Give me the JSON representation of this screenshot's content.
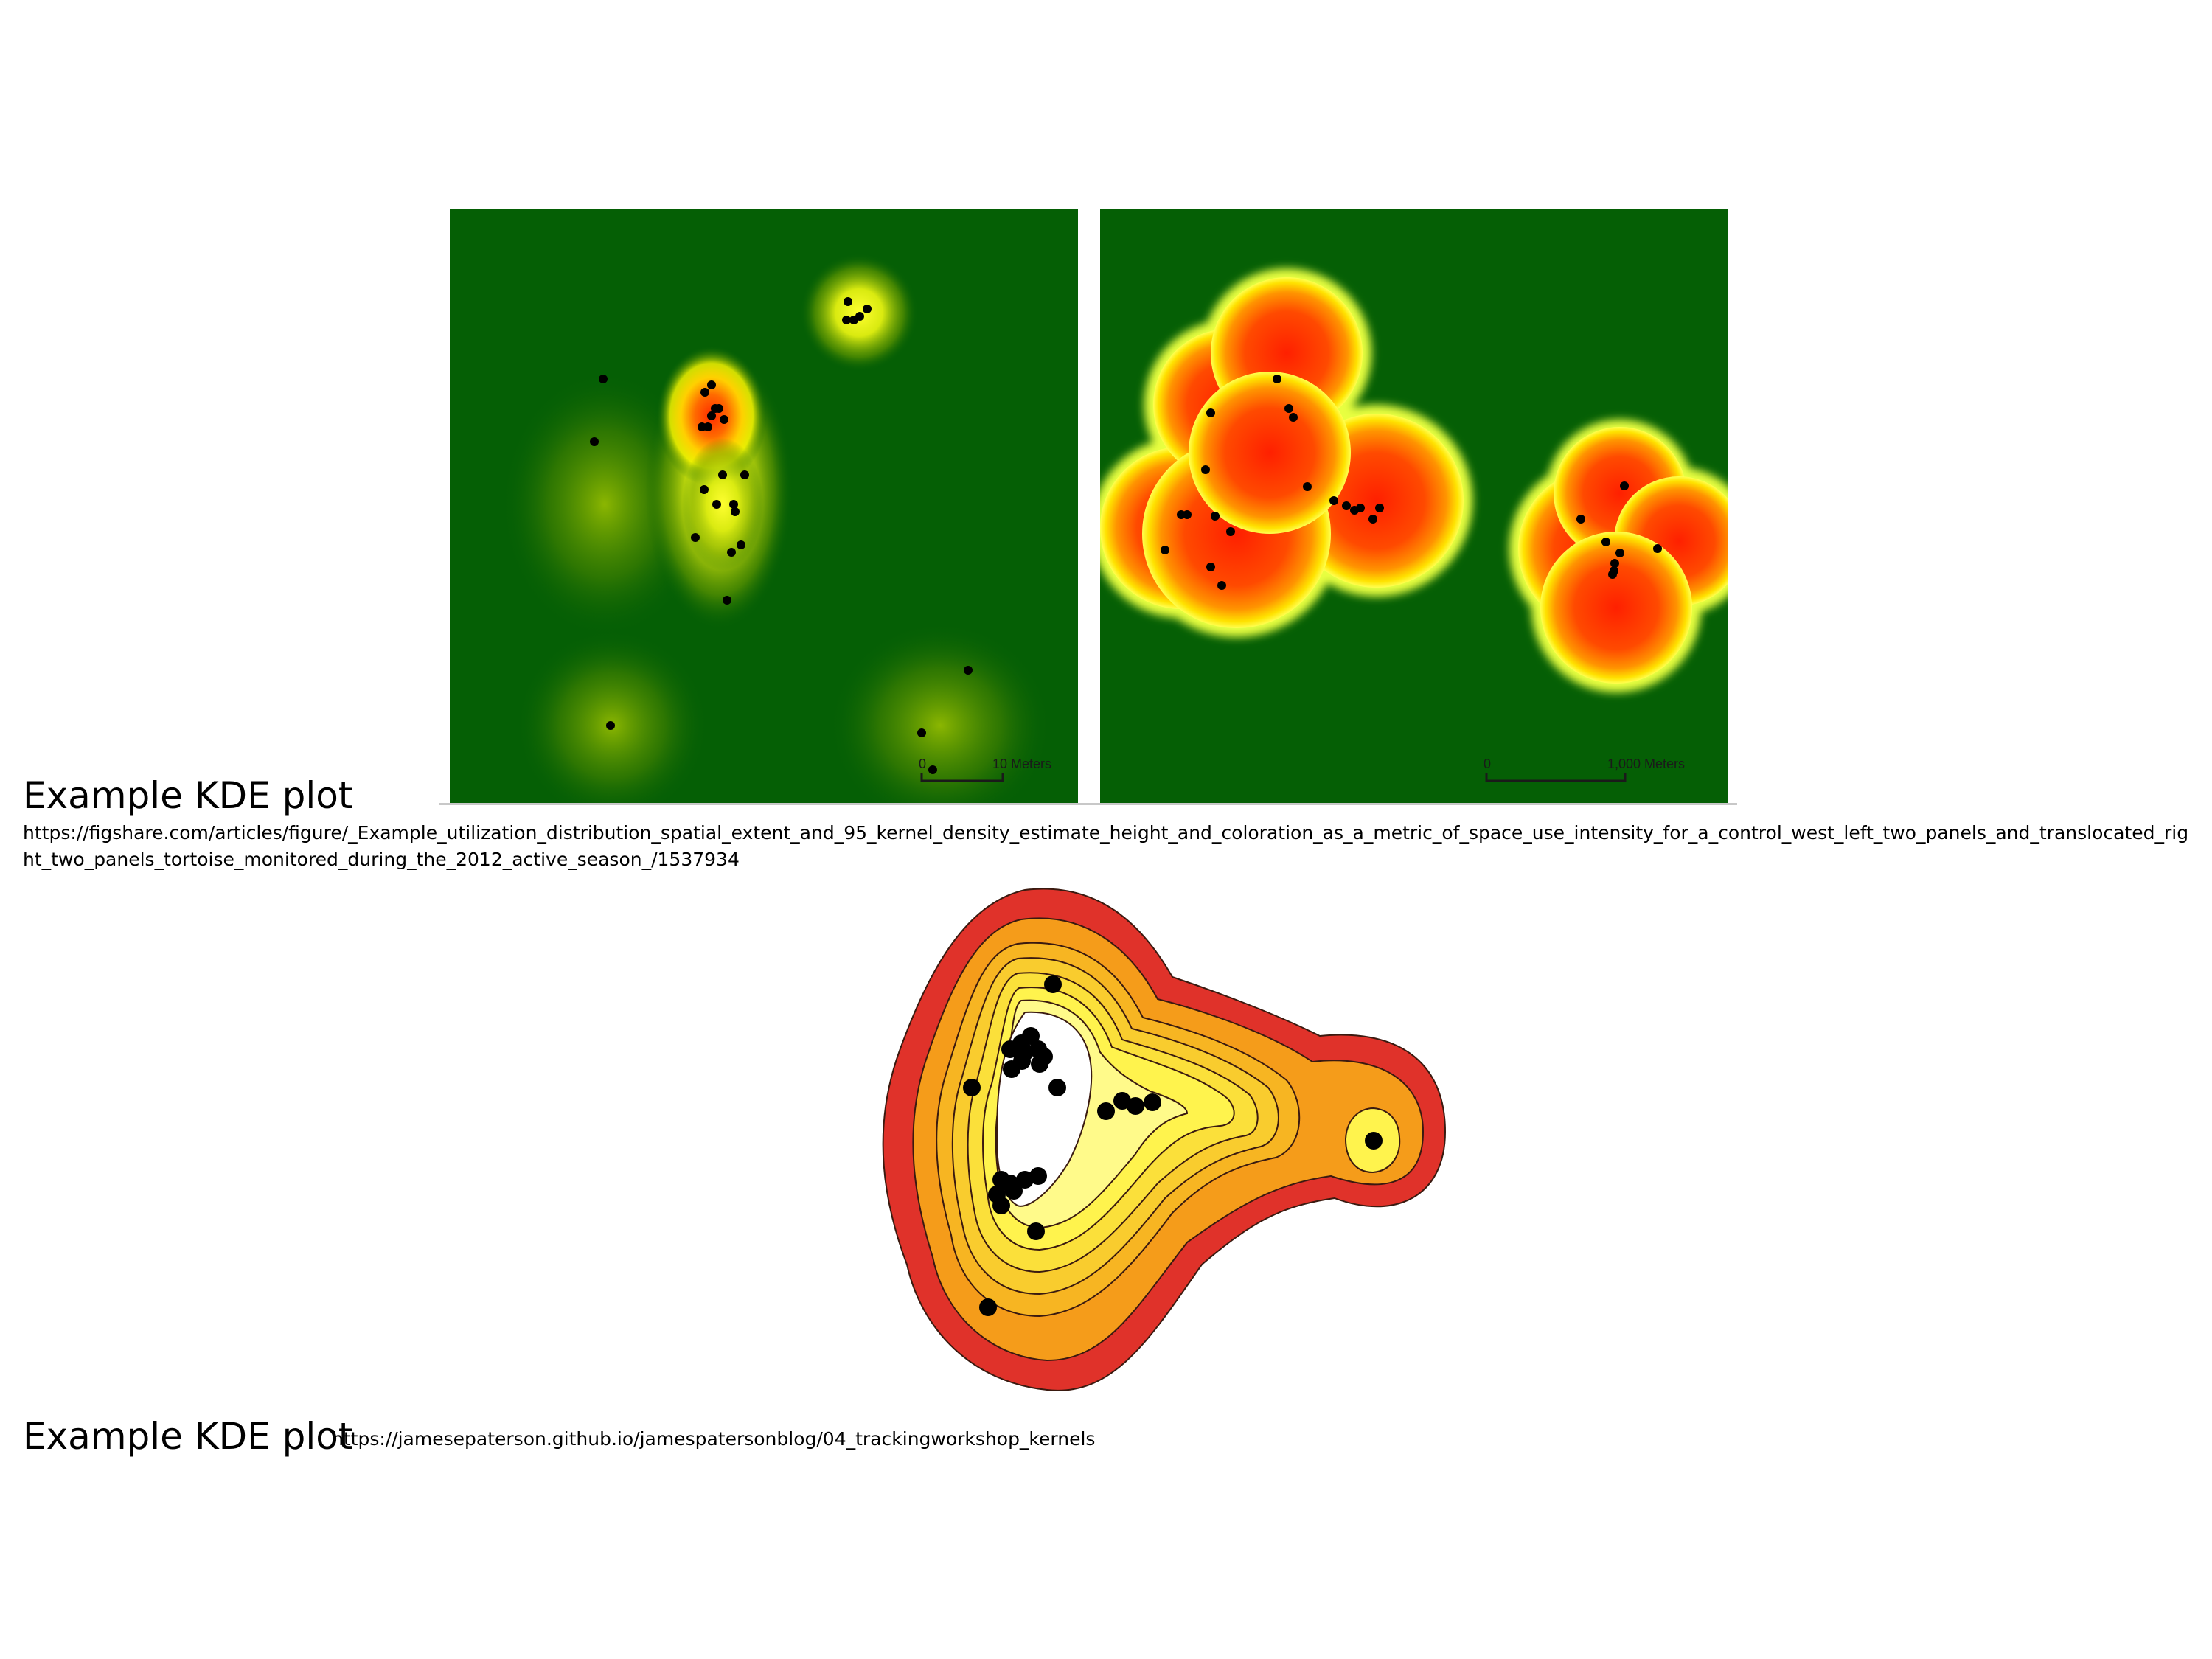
{
  "figure1": {
    "caption": "Example KDE plot",
    "source_url": "https://figshare.com/articles/figure/_Example_utilization_distribution_spatial_extent_and_95_kernel_density_estimate_height_and_coloration_as_a_metric_of_space_use_intensity_for_a_control_west_left_two_panels_and_translocated_right_two_panels_tortoise_monitored_during_the_2012_active_season_/1537934",
    "left_panel": {
      "scale_start": "0",
      "scale_end": "10 Meters"
    },
    "right_panel": {
      "scale_start": "0",
      "scale_end": "1,000 Meters"
    }
  },
  "figure2": {
    "caption": "Example KDE plot",
    "source_url": "https://jamesepaterson.github.io/jamespatersonblog/04_trackingworkshop_kernels"
  },
  "colors": {
    "map_background": "#055f05",
    "density_low": "#ffff33",
    "density_high": "#ff2200",
    "contour_outer": "#e0322a",
    "contour_mid": "#f59c1a",
    "contour_inner": "#fff34d",
    "point": "#000000"
  }
}
